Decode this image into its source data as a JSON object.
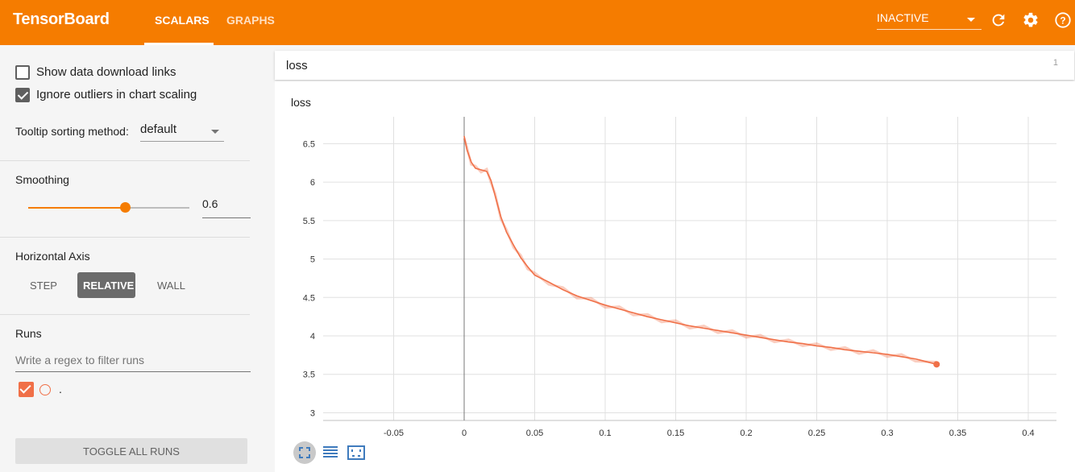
{
  "header": {
    "brand": "TensorBoard",
    "tabs": [
      {
        "label": "SCALARS"
      },
      {
        "label": "GRAPHS"
      }
    ],
    "status_select": "INACTIVE",
    "icons": [
      "refresh-icon",
      "settings-icon",
      "help-icon"
    ],
    "accent_color": "#f57c00"
  },
  "sidebar": {
    "show_download_links": {
      "label": "Show data download links",
      "checked": false
    },
    "ignore_outliers": {
      "label": "Ignore outliers in chart scaling",
      "checked": true
    },
    "tooltip_sorting": {
      "label": "Tooltip sorting method:",
      "value": "default"
    },
    "smoothing": {
      "label": "Smoothing",
      "value": "0.6",
      "fraction": 0.6
    },
    "horizontal_axis": {
      "label": "Horizontal Axis",
      "options": [
        "STEP",
        "RELATIVE",
        "WALL"
      ],
      "selected": "RELATIVE"
    },
    "runs": {
      "label": "Runs",
      "filter_placeholder": "Write a regex to filter runs",
      "items": [
        {
          "name": ".",
          "checked": true,
          "color": "#f07048"
        }
      ]
    },
    "toggle_all_label": "TOGGLE ALL RUNS"
  },
  "main": {
    "category": {
      "title": "loss",
      "count": "1"
    },
    "card_title": "loss"
  },
  "chart_data": {
    "type": "line",
    "title": "loss",
    "xlabel": "",
    "ylabel": "",
    "xlim": [
      -0.1,
      0.42
    ],
    "ylim": [
      2.9,
      6.85
    ],
    "x_ticks": [
      "-0.05",
      "0",
      "0.05",
      "0.1",
      "0.15",
      "0.2",
      "0.25",
      "0.3",
      "0.35",
      "0.4"
    ],
    "y_ticks": [
      "3",
      "3.5",
      "4",
      "4.5",
      "5",
      "5.5",
      "6",
      "6.5"
    ],
    "grid": true,
    "series": [
      {
        "color": "#f07048",
        "x": [
          0,
          0.002,
          0.005,
          0.008,
          0.012,
          0.016,
          0.019,
          0.022,
          0.026,
          0.03,
          0.035,
          0.04,
          0.045,
          0.05,
          0.06,
          0.07,
          0.08,
          0.09,
          0.1,
          0.11,
          0.12,
          0.13,
          0.14,
          0.15,
          0.16,
          0.17,
          0.18,
          0.19,
          0.2,
          0.21,
          0.22,
          0.23,
          0.24,
          0.25,
          0.26,
          0.27,
          0.28,
          0.29,
          0.3,
          0.31,
          0.32,
          0.335
        ],
        "y": [
          6.6,
          6.42,
          6.26,
          6.18,
          6.16,
          6.14,
          6.02,
          5.82,
          5.55,
          5.35,
          5.18,
          5.02,
          4.9,
          4.79,
          4.7,
          4.6,
          4.52,
          4.46,
          4.4,
          4.35,
          4.3,
          4.25,
          4.21,
          4.17,
          4.13,
          4.1,
          4.07,
          4.04,
          4.01,
          3.98,
          3.95,
          3.92,
          3.9,
          3.87,
          3.85,
          3.82,
          3.8,
          3.78,
          3.76,
          3.73,
          3.7,
          3.63
        ]
      }
    ]
  }
}
